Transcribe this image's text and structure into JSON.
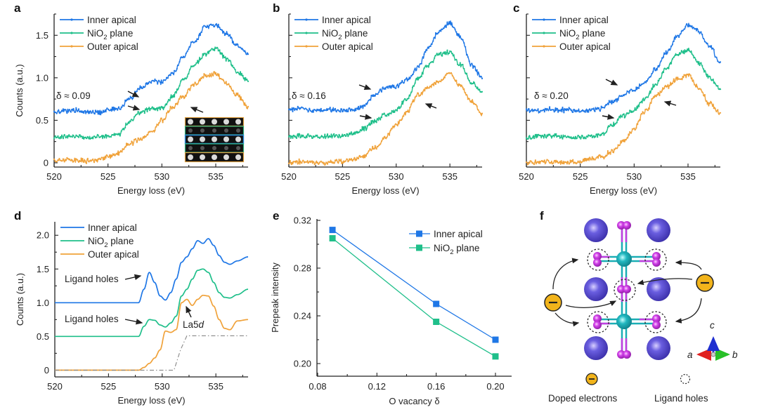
{
  "colors": {
    "inner_apical": "#1f77e6",
    "nio2_plane": "#1fbf8a",
    "outer_apical": "#f0a23a",
    "step": "#888888",
    "la_atom": "#4b3fbf",
    "ni_atom": "#1aaeb5",
    "o_atom": "#c33fe0",
    "electron": "#f2b41b",
    "axis_a": "#e02020",
    "axis_b": "#28c028",
    "axis_c": "#1f2fd0"
  },
  "chart_data": [
    {
      "panel": "a",
      "type": "line",
      "xlabel": "Energy loss (eV)",
      "ylabel": "Counts (a.u.)",
      "xlim": [
        520,
        538
      ],
      "ylim": [
        -0.05,
        1.75
      ],
      "xticks": [
        520,
        525,
        530,
        535
      ],
      "yticks": [
        0,
        0.5,
        1.0,
        1.5
      ],
      "ytick_labels": [
        "0",
        "0.5",
        "1.0",
        "1.5"
      ],
      "annotation": "δ ≈ 0.09",
      "legend": [
        "Inner apical",
        "NiO2 plane",
        "Outer apical"
      ],
      "legend_position": "top-left",
      "inset": "STEM image with colored row boxes",
      "x": [
        520,
        521,
        522,
        523,
        524,
        525,
        526,
        527,
        528,
        529,
        530,
        531,
        532,
        533,
        534,
        535,
        536,
        537,
        538
      ],
      "series": [
        {
          "name": "Inner apical",
          "values": [
            0.6,
            0.61,
            0.62,
            0.6,
            0.59,
            0.62,
            0.64,
            0.75,
            0.88,
            0.96,
            0.95,
            1.05,
            1.25,
            1.42,
            1.6,
            1.62,
            1.52,
            1.38,
            1.28
          ]
        },
        {
          "name": "NiO2 plane",
          "values": [
            0.3,
            0.31,
            0.31,
            0.3,
            0.31,
            0.31,
            0.34,
            0.48,
            0.6,
            0.63,
            0.64,
            0.78,
            0.98,
            1.15,
            1.28,
            1.35,
            1.22,
            1.07,
            0.97
          ]
        },
        {
          "name": "Outer apical",
          "values": [
            0.02,
            0.04,
            0.03,
            0.02,
            0.03,
            0.07,
            0.12,
            0.22,
            0.28,
            0.36,
            0.5,
            0.65,
            0.78,
            0.92,
            1.02,
            1.05,
            0.94,
            0.8,
            0.65
          ]
        }
      ]
    },
    {
      "panel": "b",
      "type": "line",
      "xlabel": "Energy loss (eV)",
      "xlim": [
        520,
        538
      ],
      "ylim": [
        -0.05,
        1.75
      ],
      "xticks": [
        520,
        525,
        530,
        535
      ],
      "annotation": "δ ≈ 0.16",
      "legend": [
        "Inner apical",
        "NiO2 plane",
        "Outer apical"
      ],
      "legend_position": "top-left",
      "x": [
        520,
        521,
        522,
        523,
        524,
        525,
        526,
        527,
        528,
        529,
        530,
        531,
        532,
        533,
        534,
        535,
        536,
        537,
        538
      ],
      "series": [
        {
          "name": "Inner apical",
          "values": [
            0.62,
            0.64,
            0.62,
            0.61,
            0.62,
            0.61,
            0.62,
            0.66,
            0.8,
            0.88,
            0.9,
            0.98,
            1.12,
            1.35,
            1.55,
            1.65,
            1.48,
            1.15,
            1.0
          ]
        },
        {
          "name": "NiO2 plane",
          "values": [
            0.3,
            0.32,
            0.31,
            0.31,
            0.31,
            0.32,
            0.34,
            0.4,
            0.5,
            0.56,
            0.62,
            0.75,
            0.98,
            1.15,
            1.28,
            1.3,
            1.15,
            0.95,
            0.84
          ]
        },
        {
          "name": "Outer apical",
          "values": [
            0.0,
            0.01,
            0.01,
            0.0,
            0.01,
            0.02,
            0.04,
            0.08,
            0.18,
            0.3,
            0.45,
            0.6,
            0.8,
            0.88,
            0.96,
            1.05,
            0.9,
            0.72,
            0.58
          ]
        }
      ]
    },
    {
      "panel": "c",
      "type": "line",
      "xlabel": "Energy loss (eV)",
      "xlim": [
        520,
        538
      ],
      "ylim": [
        -0.05,
        1.75
      ],
      "xticks": [
        520,
        525,
        530,
        535
      ],
      "annotation": "δ ≈ 0.20",
      "legend": [
        "Inner apical",
        "NiO2 plane",
        "Outer apical"
      ],
      "legend_position": "top-left",
      "x": [
        520,
        521,
        522,
        523,
        524,
        525,
        526,
        527,
        528,
        529,
        530,
        531,
        532,
        533,
        534,
        535,
        536,
        537,
        538
      ],
      "series": [
        {
          "name": "Inner apical",
          "values": [
            0.62,
            0.61,
            0.63,
            0.62,
            0.62,
            0.61,
            0.62,
            0.64,
            0.72,
            0.8,
            0.86,
            0.95,
            1.1,
            1.3,
            1.48,
            1.62,
            1.55,
            1.38,
            1.18
          ]
        },
        {
          "name": "NiO2 plane",
          "values": [
            0.3,
            0.31,
            0.31,
            0.31,
            0.3,
            0.3,
            0.31,
            0.34,
            0.45,
            0.55,
            0.62,
            0.75,
            0.92,
            1.12,
            1.28,
            1.33,
            1.18,
            1.0,
            0.87
          ]
        },
        {
          "name": "Outer apical",
          "values": [
            0.0,
            0.01,
            0.01,
            0.01,
            0.0,
            0.02,
            0.04,
            0.07,
            0.14,
            0.25,
            0.4,
            0.6,
            0.78,
            0.9,
            0.98,
            1.03,
            0.88,
            0.7,
            0.58
          ]
        }
      ]
    },
    {
      "panel": "d",
      "type": "line",
      "xlabel": "Energy loss (eV)",
      "ylabel": "Counts (a.u.)",
      "xlim": [
        520,
        538
      ],
      "ylim": [
        -0.1,
        2.2
      ],
      "xticks": [
        520,
        525,
        530,
        535
      ],
      "yticks": [
        0,
        0.5,
        1.0,
        1.5,
        2.0
      ],
      "ytick_labels": [
        "0",
        "0.5",
        "1.0",
        "1.5",
        "2.0"
      ],
      "legend": [
        "Inner apical",
        "NiO2 plane",
        "Outer apical"
      ],
      "legend_position": "top-left",
      "annotations": [
        "Ligand holes",
        "Ligand holes",
        "La5d"
      ],
      "x": [
        520,
        527.8,
        528.3,
        528.8,
        529.3,
        529.8,
        530.3,
        530.8,
        531.3,
        531.8,
        532.3,
        532.8,
        533.3,
        533.8,
        534.3,
        534.8,
        535.3,
        535.8,
        536.3,
        537,
        538
      ],
      "series": [
        {
          "name": "Inner apical",
          "values": [
            1.0,
            1.0,
            1.2,
            1.45,
            1.3,
            1.1,
            1.04,
            1.15,
            1.35,
            1.6,
            1.68,
            1.8,
            1.92,
            1.88,
            1.95,
            1.85,
            1.7,
            1.6,
            1.57,
            1.62,
            1.68
          ]
        },
        {
          "name": "NiO2 plane",
          "values": [
            0.5,
            0.5,
            0.65,
            0.75,
            0.74,
            0.67,
            0.64,
            0.7,
            0.8,
            1.1,
            1.2,
            1.35,
            1.48,
            1.5,
            1.45,
            1.3,
            1.15,
            1.08,
            1.07,
            1.12,
            1.2
          ]
        },
        {
          "name": "Outer apical",
          "values": [
            0.0,
            0.0,
            0.04,
            0.1,
            0.18,
            0.3,
            0.58,
            0.56,
            0.6,
            1.0,
            1.05,
            0.96,
            1.05,
            1.11,
            1.1,
            0.95,
            0.75,
            0.62,
            0.6,
            0.73,
            0.75
          ]
        },
        {
          "name": "step-function",
          "style": "dash-dot",
          "x": [
            520,
            531.1,
            531.7,
            532.3,
            538
          ],
          "values": [
            0,
            0,
            0.3,
            0.51,
            0.51
          ]
        }
      ]
    },
    {
      "panel": "e",
      "type": "line",
      "xlabel": "O vacancy δ",
      "ylabel": "Prepeak intensity",
      "xlim": [
        0.08,
        0.21
      ],
      "ylim": [
        0.19,
        0.32
      ],
      "xticks": [
        0.08,
        0.12,
        0.16,
        0.2
      ],
      "xtick_labels": [
        "0.08",
        "0.12",
        "0.16",
        "0.20"
      ],
      "yticks": [
        0.2,
        0.24,
        0.28,
        0.32
      ],
      "ytick_labels": [
        "0.20",
        "0.24",
        "0.28",
        "0.32"
      ],
      "legend": [
        "Inner apical",
        "NiO2 plane"
      ],
      "legend_position": "top-right",
      "x": [
        0.09,
        0.16,
        0.2
      ],
      "series": [
        {
          "name": "Inner apical",
          "values": [
            0.312,
            0.25,
            0.22
          ]
        },
        {
          "name": "NiO2 plane",
          "values": [
            0.305,
            0.235,
            0.206
          ]
        }
      ]
    }
  ],
  "panels": {
    "a": {
      "label": "a",
      "delta": "δ ≈ 0.09"
    },
    "b": {
      "label": "b",
      "delta": "δ ≈ 0.16"
    },
    "c": {
      "label": "c",
      "delta": "δ ≈ 0.20"
    },
    "d": {
      "label": "d",
      "ligand1": "Ligand holes",
      "ligand2": "Ligand holes",
      "la5d_prefix": "La5",
      "la5d_suffix": "d"
    },
    "e": {
      "label": "e"
    },
    "f": {
      "label": "f",
      "legend_electrons": "Doped electrons",
      "legend_holes": "Ligand holes",
      "axis_a": "a",
      "axis_b": "b",
      "axis_c": "c",
      "electron_symbol": "−"
    }
  },
  "legend": {
    "inner": "Inner apical",
    "nio2_prefix": "NiO",
    "nio2_sub": "2",
    "nio2_suffix": " plane",
    "outer": "Outer apical"
  },
  "axes": {
    "energy_loss": "Energy loss (eV)",
    "counts": "Counts (a.u.)",
    "prepeak": "Prepeak intensity",
    "o_vacancy": "O vacancy δ"
  }
}
